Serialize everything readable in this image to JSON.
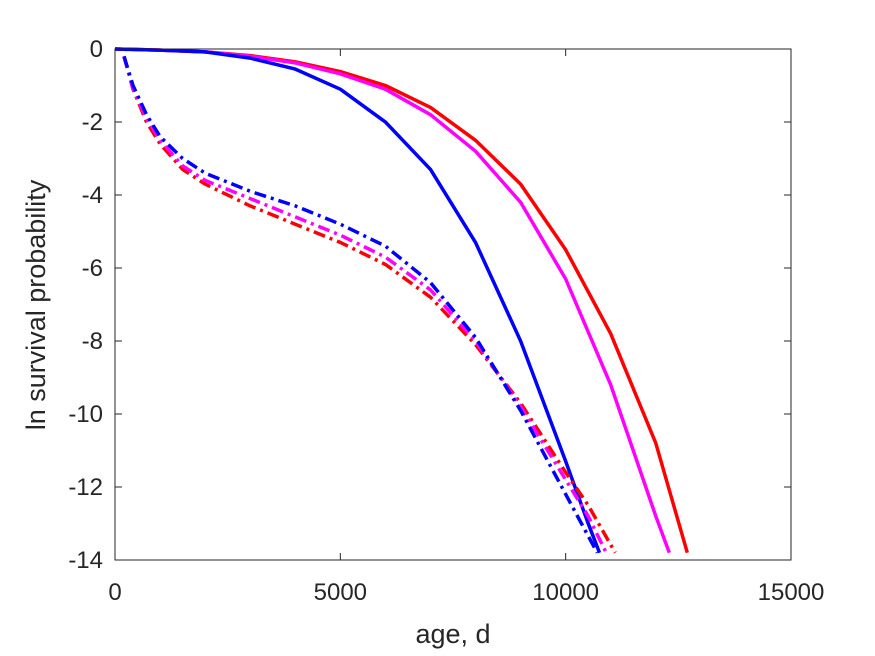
{
  "chart_data": {
    "type": "line",
    "title": "",
    "xlabel": "age, d",
    "ylabel": "ln survival probability",
    "xlim": [
      0,
      15000
    ],
    "ylim": [
      -14,
      0
    ],
    "xticks": [
      0,
      5000,
      10000,
      15000
    ],
    "xtick_labels": [
      "0",
      "5000",
      "10000",
      "15000"
    ],
    "yticks": [
      0,
      -2,
      -4,
      -6,
      -8,
      -10,
      -12,
      -14
    ],
    "ytick_labels": [
      "0",
      "-2",
      "-4",
      "-6",
      "-8",
      "-10",
      "-12",
      "-14"
    ],
    "grid": false,
    "legend": "none",
    "series": [
      {
        "color": "#ff0000",
        "style": "solid",
        "x": [
          0,
          1000,
          2000,
          3000,
          4000,
          5000,
          6000,
          7000,
          8000,
          9000,
          10000,
          11000,
          12000,
          12700
        ],
        "y": [
          0,
          -0.03,
          -0.08,
          -0.18,
          -0.35,
          -0.62,
          -1.0,
          -1.6,
          -2.5,
          -3.7,
          -5.5,
          -7.8,
          -10.8,
          -13.8
        ]
      },
      {
        "color": "#ff00ff",
        "style": "solid",
        "x": [
          0,
          1000,
          2000,
          3000,
          4000,
          5000,
          6000,
          7000,
          8000,
          9000,
          10000,
          11000,
          12000,
          12300
        ],
        "y": [
          0,
          -0.03,
          -0.08,
          -0.2,
          -0.38,
          -0.68,
          -1.1,
          -1.8,
          -2.8,
          -4.2,
          -6.3,
          -9.2,
          -12.8,
          -13.8
        ]
      },
      {
        "color": "#0000ff",
        "style": "solid",
        "x": [
          0,
          1000,
          2000,
          3000,
          4000,
          5000,
          6000,
          7000,
          8000,
          9000,
          10000,
          10500,
          10750
        ],
        "y": [
          0,
          -0.03,
          -0.08,
          -0.25,
          -0.55,
          -1.1,
          -2.0,
          -3.3,
          -5.3,
          -8.0,
          -11.3,
          -13.0,
          -13.8
        ]
      },
      {
        "color": "#ff0000",
        "style": "dashdot",
        "x": [
          200,
          400,
          700,
          1000,
          1500,
          2000,
          3000,
          4000,
          5000,
          6000,
          7000,
          8000,
          9000,
          10000,
          10500,
          11100
        ],
        "y": [
          -0.2,
          -1.1,
          -2.0,
          -2.6,
          -3.3,
          -3.7,
          -4.3,
          -4.8,
          -5.3,
          -5.9,
          -6.8,
          -8.1,
          -9.7,
          -11.6,
          -12.5,
          -13.8
        ]
      },
      {
        "color": "#ff00ff",
        "style": "dashdot",
        "x": [
          200,
          400,
          700,
          1000,
          1500,
          2000,
          3000,
          4000,
          5000,
          6000,
          7000,
          8000,
          9000,
          10000,
          10500,
          10900
        ],
        "y": [
          -0.2,
          -1.1,
          -1.9,
          -2.5,
          -3.2,
          -3.6,
          -4.1,
          -4.6,
          -5.1,
          -5.7,
          -6.6,
          -8.0,
          -9.8,
          -11.8,
          -12.8,
          -13.8
        ]
      },
      {
        "color": "#0000ff",
        "style": "dashdot",
        "x": [
          200,
          400,
          700,
          1000,
          1500,
          2000,
          3000,
          4000,
          5000,
          6000,
          7000,
          8000,
          9000,
          10000,
          10700
        ],
        "y": [
          -0.2,
          -1.0,
          -1.8,
          -2.4,
          -3.0,
          -3.4,
          -3.9,
          -4.3,
          -4.8,
          -5.4,
          -6.4,
          -7.9,
          -9.9,
          -12.2,
          -13.8
        ]
      }
    ]
  }
}
